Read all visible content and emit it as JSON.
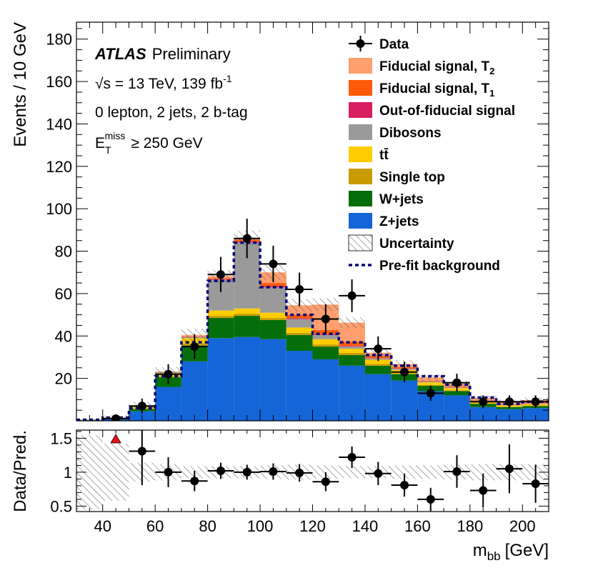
{
  "chart_data": {
    "type": "bar",
    "title": "",
    "atlas_label": "ATLAS",
    "atlas_status": "Preliminary",
    "energy_prefix": "√s = 13 TeV, 139 fb",
    "energy_sup": "-1",
    "selection": "0 lepton, 2 jets, 2 b-tag",
    "met_main": "E",
    "met_sub": "T",
    "met_sup": "miss",
    "met_cut": "≥ 250 GeV",
    "ylabel": "Events / 10 GeV",
    "ratio_ylabel": "Data/Pred.",
    "xlabel_main": "m",
    "xlabel_sub": "bb",
    "xlabel_unit": "[GeV]",
    "xlim": [
      30,
      210
    ],
    "ylim": [
      0,
      188
    ],
    "ratio_ylim": [
      0.42,
      1.62
    ],
    "x_ticks": [
      "40",
      "60",
      "80",
      "100",
      "120",
      "140",
      "160",
      "180",
      "200"
    ],
    "y_ticks": [
      "20",
      "40",
      "60",
      "80",
      "100",
      "120",
      "140",
      "160",
      "180"
    ],
    "ratio_ticks": [
      "0.5",
      "1",
      "1.5"
    ],
    "bin_edges": [
      30,
      40,
      50,
      60,
      70,
      80,
      90,
      100,
      110,
      120,
      130,
      140,
      150,
      160,
      170,
      180,
      190,
      200,
      210
    ],
    "stack": [
      {
        "name": "Z+jets",
        "color": "#1465d7",
        "values": [
          0.3,
          1.0,
          4.5,
          16,
          28,
          39,
          39.5,
          38.5,
          33,
          29,
          26,
          22,
          19,
          14,
          12,
          6.5,
          5.5,
          6
        ]
      },
      {
        "name": "W+jets",
        "color": "#056e0a",
        "values": [
          0.1,
          0.3,
          1.0,
          4.5,
          7.5,
          9.5,
          10,
          9,
          7.5,
          6,
          5,
          4,
          3,
          2.5,
          2,
          1.5,
          1,
          1
        ]
      },
      {
        "name": "Single top",
        "color": "#c89b00",
        "values": [
          0,
          0.05,
          0.2,
          0.5,
          1,
          1,
          1,
          1,
          1,
          1,
          1,
          0.8,
          0.5,
          0.4,
          0.4,
          0.3,
          0.2,
          0.2
        ]
      },
      {
        "name": "tt̄",
        "color": "#ffcd00",
        "values": [
          0.1,
          0.2,
          0.8,
          1.5,
          2.5,
          2.5,
          2.5,
          2.5,
          2.5,
          2.5,
          2,
          2,
          1.5,
          1.2,
          1,
          0.8,
          0.6,
          0.6
        ]
      },
      {
        "name": "Dibosons",
        "color": "#9a9a9a",
        "values": [
          0.05,
          0.2,
          0.5,
          0.5,
          0.5,
          14.5,
          31,
          12,
          4,
          2,
          1,
          0.6,
          0.5,
          0.4,
          0.3,
          0.3,
          0.2,
          0.2
        ]
      },
      {
        "name": "Out-of-fiducial signal",
        "color": "#d82060",
        "values": [
          0,
          0,
          0,
          0,
          0.1,
          0.3,
          0.5,
          0.5,
          0.4,
          0.3,
          0.3,
          0.2,
          0.2,
          0.1,
          0.1,
          0.1,
          0.1,
          0.1
        ]
      },
      {
        "name": "Fiducial signal, T1",
        "color": "#ff5a0a",
        "values": [
          0,
          0,
          0,
          0,
          0.2,
          0.5,
          1,
          1.5,
          1.6,
          2,
          2,
          1,
          0.6,
          0.3,
          0.2,
          0.2,
          0.2,
          0.2
        ]
      },
      {
        "name": "Fiducial signal, T2",
        "color": "#ff9e6e",
        "values": [
          0,
          0,
          0,
          0.3,
          0.7,
          0.9,
          0.7,
          5,
          4.5,
          12,
          9,
          1.5,
          1.5,
          1.5,
          1.5,
          1,
          1,
          1.5
        ]
      }
    ],
    "uncertainty_band": [
      0.4,
      0.8,
      2,
      2,
      3,
      3,
      3.5,
      3.5,
      3,
      3,
      2.5,
      2,
      1.8,
      1.5,
      1.5,
      1.2,
      1.2,
      1.2
    ],
    "prefit_background": [
      0.5,
      1.5,
      6,
      21,
      37,
      66,
      84,
      63,
      50,
      41,
      37,
      31,
      26,
      21,
      17,
      11,
      8,
      9
    ],
    "data": {
      "x": [
        45,
        55,
        65,
        75,
        85,
        95,
        105,
        115,
        125,
        135,
        145,
        155,
        165,
        175,
        185,
        195,
        205
      ],
      "y": [
        1,
        7,
        22,
        35,
        69,
        86,
        74,
        62,
        48,
        59,
        34,
        23,
        13,
        18,
        9,
        9,
        9
      ],
      "err": [
        1.5,
        3.5,
        4.7,
        5.9,
        8.3,
        9.3,
        8.6,
        7.9,
        6.9,
        7.7,
        5.8,
        4.8,
        3.6,
        4.2,
        3,
        3,
        3
      ]
    },
    "ratio": {
      "x": [
        55,
        65,
        75,
        85,
        95,
        105,
        115,
        125,
        135,
        145,
        155,
        165,
        175,
        185,
        195,
        205
      ],
      "y": [
        1.31,
        1.0,
        0.87,
        1.02,
        1.0,
        1.01,
        0.99,
        0.86,
        1.22,
        0.98,
        0.81,
        0.6,
        1.01,
        0.73,
        1.05,
        0.83
      ],
      "err": [
        0.5,
        0.22,
        0.15,
        0.12,
        0.11,
        0.12,
        0.13,
        0.14,
        0.16,
        0.17,
        0.17,
        0.17,
        0.24,
        0.25,
        0.36,
        0.28
      ],
      "band": [
        0.55,
        0.42,
        0.14,
        0.12,
        0.09,
        0.09,
        0.09,
        0.1,
        0.11,
        0.1,
        0.09,
        0.09,
        0.1,
        0.1,
        0.11,
        0.12,
        0.12,
        0.12
      ],
      "overflow_marker_x": 45,
      "overflow_marker_color": "#ee1111"
    },
    "legend": [
      {
        "label": "Data",
        "type": "data"
      },
      {
        "label": "Fiducial signal, T",
        "sub": "2",
        "type": "fill",
        "color": "#ff9e6e"
      },
      {
        "label": "Fiducial signal, T",
        "sub": "1",
        "type": "fill",
        "color": "#ff5a0a"
      },
      {
        "label": "Out-of-fiducial signal",
        "type": "fill",
        "color": "#d82060"
      },
      {
        "label": "Dibosons",
        "type": "fill",
        "color": "#9a9a9a"
      },
      {
        "label": "tt̄",
        "type": "fill",
        "color": "#ffcd00"
      },
      {
        "label": "Single top",
        "type": "fill",
        "color": "#c89b00"
      },
      {
        "label": "W+jets",
        "type": "fill",
        "color": "#056e0a"
      },
      {
        "label": "Z+jets",
        "type": "fill",
        "color": "#1465d7"
      },
      {
        "label": "Uncertainty",
        "type": "hatch"
      },
      {
        "label": "Pre-fit background",
        "type": "dashed",
        "color": "#08087a"
      }
    ]
  }
}
